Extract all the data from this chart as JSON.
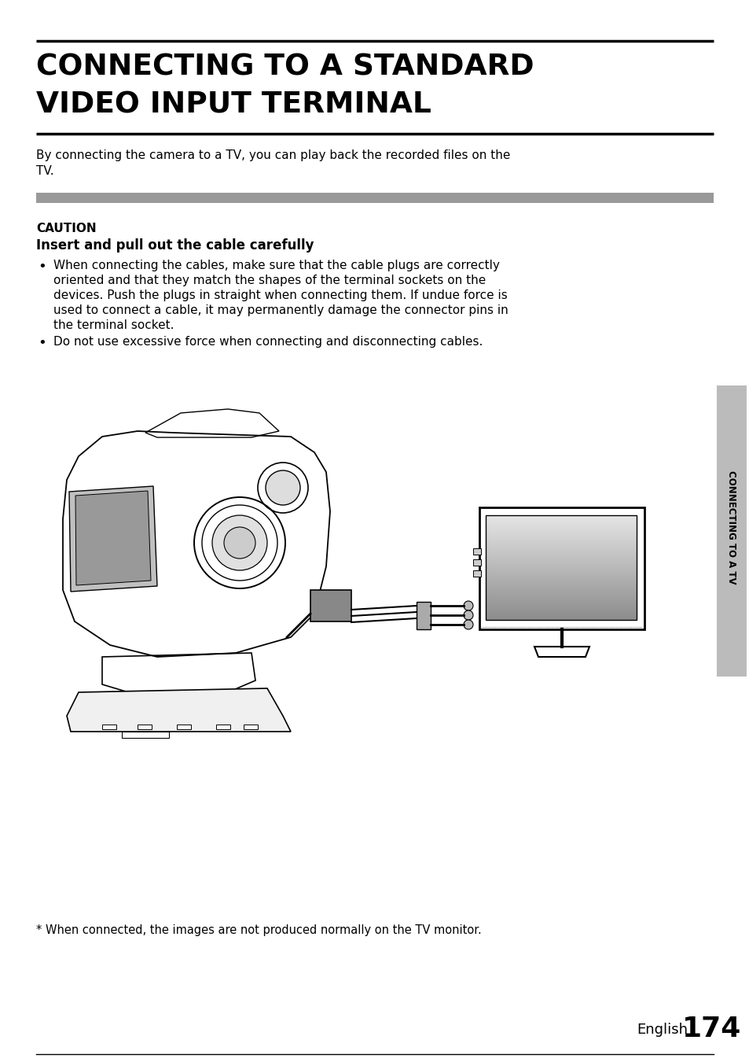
{
  "bg_color": "#ffffff",
  "title_line1": "CONNECTING TO A STANDARD",
  "title_line2": "VIDEO INPUT TERMINAL",
  "intro_text1": "By connecting the camera to a TV, you can play back the recorded files on the",
  "intro_text2": "TV.",
  "caution_label": "CAUTION",
  "caution_subtitle": "Insert and pull out the cable carefully",
  "bullet1_lines": [
    "When connecting the cables, make sure that the cable plugs are correctly",
    "oriented and that they match the shapes of the terminal sockets on the",
    "devices. Push the plugs in straight when connecting them. If undue force is",
    "used to connect a cable, it may permanently damage the connector pins in",
    "the terminal socket."
  ],
  "bullet2": "Do not use excessive force when connecting and disconnecting cables.",
  "footnote": "* When connected, the images are not produced normally on the TV monitor.",
  "page_label": "English",
  "page_number": "174",
  "sidebar_text": "CONNECTING TO A TV",
  "gray_bar_color": "#999999",
  "sidebar_bg": "#bbbbbb"
}
